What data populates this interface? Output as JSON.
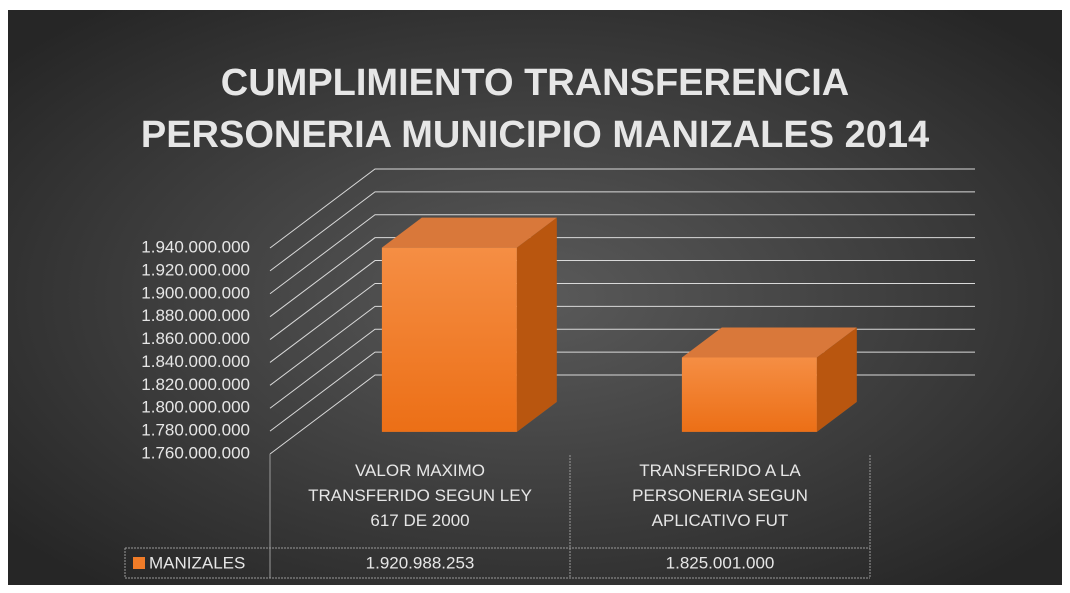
{
  "chart_data": {
    "type": "bar3d",
    "title": [
      "CUMPLIMIENTO TRANSFERENCIA",
      "PERSONERIA MUNICIPIO MANIZALES 2014"
    ],
    "categories": [
      "VALOR MAXIMO TRANSFERIDO SEGUN LEY 617 DE 2000",
      "TRANSFERIDO A LA PERSONERIA SEGUN APLICATIVO FUT"
    ],
    "series": [
      {
        "name": "MANIZALES",
        "color": "#f07c28",
        "values": [
          1920988253,
          1825001000
        ],
        "value_labels": [
          "1.920.988.253",
          "1.825.001.000"
        ]
      }
    ],
    "ylim": [
      1760000000,
      1940000000
    ],
    "yticks": [
      {
        "value": 1760000000,
        "label": "1.760.000.000"
      },
      {
        "value": 1780000000,
        "label": "1.780.000.000"
      },
      {
        "value": 1800000000,
        "label": "1.800.000.000"
      },
      {
        "value": 1820000000,
        "label": "1.820.000.000"
      },
      {
        "value": 1840000000,
        "label": "1.840.000.000"
      },
      {
        "value": 1860000000,
        "label": "1.860.000.000"
      },
      {
        "value": 1880000000,
        "label": "1.880.000.000"
      },
      {
        "value": 1900000000,
        "label": "1.900.000.000"
      },
      {
        "value": 1920000000,
        "label": "1.920.000.000"
      },
      {
        "value": 1940000000,
        "label": "1.940.000.000"
      }
    ],
    "grid": true,
    "legend": "table"
  }
}
